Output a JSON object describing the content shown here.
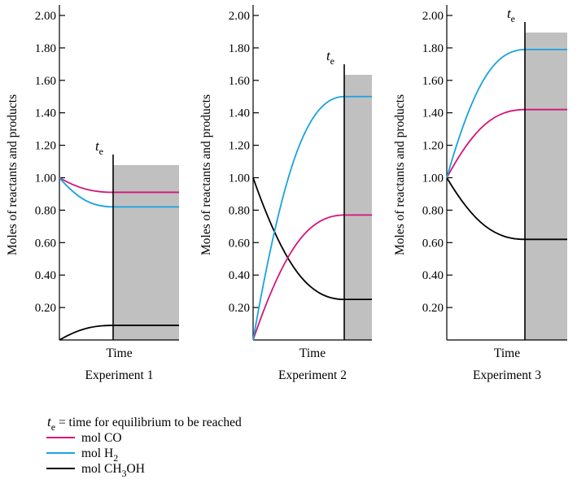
{
  "chart_data": [
    {
      "type": "line",
      "title": "Experiment 1",
      "xlabel": "Time",
      "ylabel": "Moles of reactants and products",
      "ylim": [
        0,
        2.0
      ],
      "yticks": [
        "0.20",
        "0.40",
        "0.60",
        "0.80",
        "1.00",
        "1.20",
        "1.40",
        "1.60",
        "1.80",
        "2.00"
      ],
      "te_label": "t",
      "te_sub": "e",
      "series": [
        {
          "key": "co",
          "start": 1.0,
          "end": 0.91,
          "color": "#d4147a"
        },
        {
          "key": "h2",
          "start": 1.0,
          "end": 0.82,
          "color": "#1aa3e0"
        },
        {
          "key": "ch3oh",
          "start": 0.0,
          "end": 0.09,
          "color": "#000000"
        }
      ]
    },
    {
      "type": "line",
      "title": "Experiment 2",
      "xlabel": "Time",
      "ylabel": "Moles of reactants and products",
      "ylim": [
        0,
        2.0
      ],
      "yticks": [
        "0.20",
        "0.40",
        "0.60",
        "0.80",
        "1.00",
        "1.20",
        "1.40",
        "1.60",
        "1.80",
        "2.00"
      ],
      "te_label": "t",
      "te_sub": "e",
      "series": [
        {
          "key": "co",
          "start": 0.0,
          "end": 0.77,
          "color": "#d4147a"
        },
        {
          "key": "h2",
          "start": 0.0,
          "end": 1.5,
          "color": "#1aa3e0"
        },
        {
          "key": "ch3oh",
          "start": 1.0,
          "end": 0.25,
          "color": "#000000"
        }
      ]
    },
    {
      "type": "line",
      "title": "Experiment 3",
      "xlabel": "Time",
      "ylabel": "Moles of reactants and products",
      "ylim": [
        0,
        2.0
      ],
      "yticks": [
        "0.20",
        "0.40",
        "0.60",
        "0.80",
        "1.00",
        "1.20",
        "1.40",
        "1.60",
        "1.80",
        "2.00"
      ],
      "te_label": "t",
      "te_sub": "e",
      "series": [
        {
          "key": "co",
          "start": 1.0,
          "end": 1.42,
          "color": "#d4147a"
        },
        {
          "key": "h2",
          "start": 1.0,
          "end": 1.79,
          "color": "#1aa3e0"
        },
        {
          "key": "ch3oh",
          "start": 1.0,
          "end": 0.62,
          "color": "#000000"
        }
      ]
    }
  ],
  "legend": {
    "definition": {
      "symbol": "t",
      "sub": "e",
      "text": " = time for equilibrium to be reached"
    },
    "items": [
      {
        "key": "co",
        "color": "#d4147a",
        "parts": [
          {
            "t": "mol CO"
          }
        ]
      },
      {
        "key": "h2",
        "color": "#1aa3e0",
        "parts": [
          {
            "t": "mol H"
          },
          {
            "t": "2",
            "sub": true
          }
        ]
      },
      {
        "key": "ch3oh",
        "color": "#000000",
        "parts": [
          {
            "t": "mol CH"
          },
          {
            "t": "3",
            "sub": true
          },
          {
            "t": "OH"
          }
        ]
      }
    ]
  },
  "colors": {
    "shade": "#c0c0c0"
  }
}
